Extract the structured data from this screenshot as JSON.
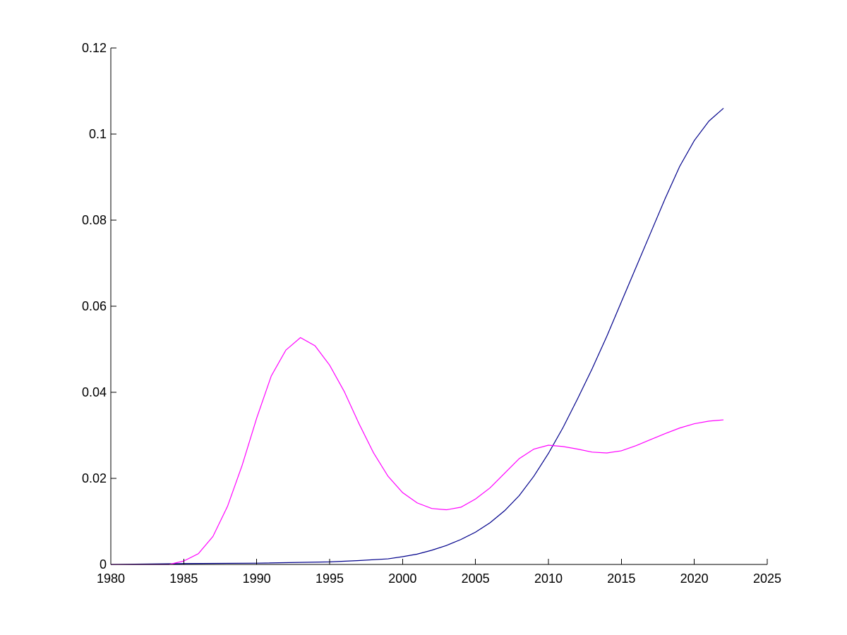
{
  "chart_data": {
    "type": "line",
    "title": "",
    "xlabel": "",
    "ylabel": "",
    "xlim": [
      1980,
      2025
    ],
    "ylim": [
      0,
      0.12
    ],
    "x_ticks": [
      1980,
      1985,
      1990,
      1995,
      2000,
      2005,
      2010,
      2015,
      2020,
      2025
    ],
    "x_tick_labels": [
      "1980",
      "1985",
      "1990",
      "1995",
      "2000",
      "2005",
      "2010",
      "2015",
      "2020",
      "2025"
    ],
    "y_ticks": [
      0,
      0.02,
      0.04,
      0.06,
      0.08,
      0.1,
      0.12
    ],
    "y_tick_labels": [
      "0",
      "0.02",
      "0.04",
      "0.06",
      "0.08",
      "0.1",
      "0.12"
    ],
    "grid": false,
    "series": [
      {
        "color": "#00008b",
        "x": [
          1980,
          1985,
          1990,
          1995,
          1997,
          1999,
          2000,
          2001,
          2002,
          2003,
          2004,
          2005,
          2006,
          2007,
          2008,
          2009,
          2010,
          2011,
          2012,
          2013,
          2014,
          2015,
          2016,
          2017,
          2018,
          2019,
          2020,
          2021,
          2022
        ],
        "y": [
          0,
          0.0002,
          0.0003,
          0.0006,
          0.0009,
          0.0013,
          0.0018,
          0.0024,
          0.0033,
          0.0044,
          0.0058,
          0.0075,
          0.0097,
          0.0125,
          0.016,
          0.0205,
          0.0258,
          0.0318,
          0.0385,
          0.0455,
          0.053,
          0.061,
          0.069,
          0.077,
          0.085,
          0.0925,
          0.0985,
          0.103,
          0.106
        ]
      },
      {
        "color": "#ff00ff",
        "x": [
          1980,
          1984,
          1985,
          1986,
          1987,
          1988,
          1989,
          1990,
          1991,
          1992,
          1993,
          1994,
          1995,
          1996,
          1997,
          1998,
          1999,
          2000,
          2001,
          2002,
          2003,
          2004,
          2005,
          2006,
          2007,
          2008,
          2009,
          2010,
          2011,
          2012,
          2013,
          2014,
          2015,
          2016,
          2017,
          2018,
          2019,
          2020,
          2021,
          2022
        ],
        "y": [
          0,
          0,
          0.0008,
          0.0025,
          0.0065,
          0.0135,
          0.023,
          0.034,
          0.0438,
          0.0498,
          0.0527,
          0.0508,
          0.0463,
          0.0402,
          0.0328,
          0.026,
          0.0205,
          0.0167,
          0.0143,
          0.013,
          0.0127,
          0.0133,
          0.0152,
          0.0178,
          0.0212,
          0.0246,
          0.0268,
          0.0277,
          0.0274,
          0.0268,
          0.0261,
          0.0259,
          0.0264,
          0.0276,
          0.029,
          0.0304,
          0.0317,
          0.0327,
          0.0333,
          0.0336
        ]
      }
    ]
  }
}
